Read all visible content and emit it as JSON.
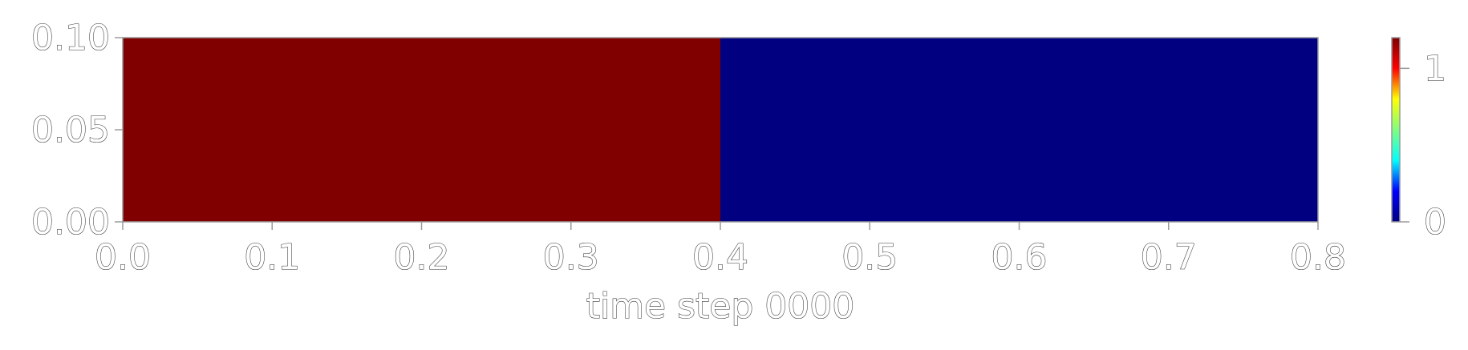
{
  "chart_data": {
    "type": "heatmap",
    "title": "",
    "xlabel": "time step 0000",
    "ylabel": "",
    "xlim": [
      0.0,
      0.8
    ],
    "ylim": [
      0.0,
      0.1
    ],
    "grid": false,
    "x_ticks": [
      "0.0",
      "0.1",
      "0.2",
      "0.3",
      "0.4",
      "0.5",
      "0.6",
      "0.7",
      "0.8"
    ],
    "y_ticks": [
      "0.00",
      "0.05",
      "0.10"
    ],
    "regions": [
      {
        "x": [
          0.0,
          0.4
        ],
        "y": [
          0.0,
          0.1
        ],
        "value": 1,
        "color": "#800000"
      },
      {
        "x": [
          0.4,
          0.8
        ],
        "y": [
          0.0,
          0.1
        ],
        "value": 0,
        "color": "#000080"
      }
    ],
    "colorbar": {
      "colormap": "jet",
      "range": [
        0,
        1.2
      ],
      "ticks": [
        "0",
        "1"
      ],
      "tick_values": [
        0,
        1
      ],
      "colors": [
        "#00007f",
        "#0000ff",
        "#00ffff",
        "#7fff7f",
        "#ffff00",
        "#ff0000",
        "#7f0000"
      ]
    }
  }
}
